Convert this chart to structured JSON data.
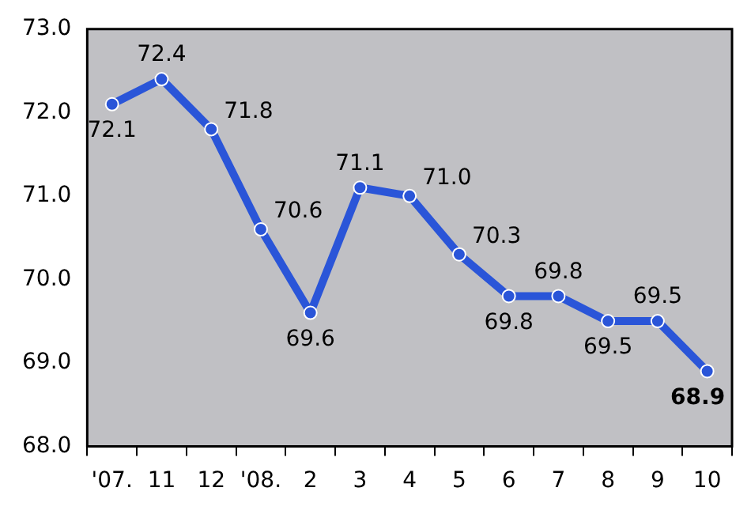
{
  "chart_data": {
    "type": "line",
    "categories": [
      "'07.",
      "11",
      "12",
      "'08.",
      "2",
      "3",
      "4",
      "5",
      "6",
      "7",
      "8",
      "9",
      "10"
    ],
    "series": [
      {
        "color": "#2a55d8",
        "values": [
          72.1,
          72.4,
          71.8,
          70.6,
          69.6,
          71.1,
          71.0,
          70.3,
          69.8,
          69.8,
          69.5,
          69.5,
          68.9
        ],
        "value_labels": [
          "72.1",
          "72.4",
          "71.8",
          "70.6",
          "69.6",
          "71.1",
          "71.0",
          "70.3",
          "69.8",
          "69.8",
          "69.5",
          "69.5",
          "68.9"
        ]
      }
    ],
    "ylim": [
      68,
      73
    ],
    "yticks": [
      {
        "value": 68,
        "label": "68.0"
      },
      {
        "value": 69,
        "label": "69.0"
      },
      {
        "value": 70,
        "label": "70.0"
      },
      {
        "value": 71,
        "label": "71.0"
      },
      {
        "value": 72,
        "label": "72.0"
      },
      {
        "value": 73,
        "label": "73.0"
      }
    ],
    "grid": false,
    "legend": false,
    "marker": "circle",
    "line_style": "solid"
  }
}
